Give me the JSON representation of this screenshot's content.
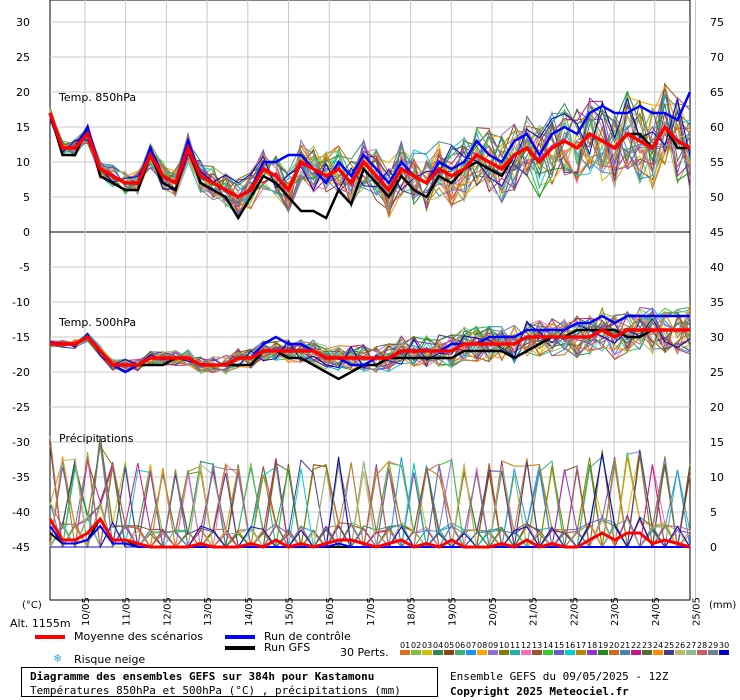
{
  "chart_data": {
    "type": "line",
    "title": "Diagramme des ensembles GEFS sur 384h pour Kastamonu",
    "subtitle": "Températures 850hPa et 500hPa (°C) , précipitations (mm)",
    "run_info": "Ensemble GEFS du 09/05/2025 - 12Z",
    "copyright": "Copyright 2025 Meteociel.fr",
    "altitude": "Alt. 1155m",
    "left_unit": "(°C)",
    "right_unit": "(mm)",
    "left_ticks": [
      "30",
      "25",
      "20",
      "15",
      "10",
      "5",
      "0",
      "-5",
      "-10",
      "-15",
      "-20",
      "-25",
      "-30",
      "-35",
      "-40",
      "-45"
    ],
    "right_ticks": [
      "75",
      "70",
      "65",
      "60",
      "55",
      "50",
      "45",
      "40",
      "35",
      "30",
      "25",
      "20",
      "15",
      "10",
      "5",
      "0"
    ],
    "dates": [
      "10/05",
      "11/05",
      "12/05",
      "13/05",
      "14/05",
      "15/05",
      "16/05",
      "17/05",
      "18/05",
      "19/05",
      "20/05",
      "21/05",
      "22/05",
      "23/05",
      "24/05",
      "25/05"
    ],
    "panels": {
      "t850": "Temp. 850hPa",
      "t500": "Temp. 500hPa",
      "precip": "Précipitations"
    },
    "legend": {
      "mean": "Moyenne des scénarios",
      "control": "Run de contrôle",
      "gfs": "Run GFS",
      "snow": "Risque neige",
      "perts": "30 Perts."
    },
    "perturbation_labels": [
      "01",
      "02",
      "03",
      "04",
      "05",
      "06",
      "07",
      "08",
      "09",
      "10",
      "11",
      "12",
      "13",
      "14",
      "15",
      "16",
      "17",
      "18",
      "19",
      "20",
      "21",
      "22",
      "23",
      "24",
      "25",
      "26",
      "27",
      "28",
      "29",
      "30"
    ],
    "colors": {
      "mean": "#ff0000",
      "control": "#0000ff",
      "gfs": "#000000",
      "grid": "#c8c8c8",
      "snow": "#3aa0e0",
      "members": [
        "#e07020",
        "#7fbf3f",
        "#d0c000",
        "#2e8b57",
        "#8b4513",
        "#3cb371",
        "#1e90ff",
        "#ffa500",
        "#9370db",
        "#808000",
        "#20b2aa",
        "#ff69b4",
        "#a0522d",
        "#32cd32",
        "#6a5acd",
        "#00ced1",
        "#b8860b",
        "#9932cc",
        "#228b22",
        "#d2691e",
        "#4682b4",
        "#c71585",
        "#556b2f",
        "#ff8c00",
        "#483d8b",
        "#bdb76b",
        "#8fbc8f",
        "#cd5c5c",
        "#708090",
        "#0000cd"
      ]
    },
    "series": {
      "t850_mean": [
        17,
        12,
        12,
        14,
        9,
        8,
        7,
        7,
        11,
        8,
        7,
        12,
        8,
        7,
        6,
        5,
        6,
        9,
        8,
        6,
        10,
        9,
        8,
        9,
        7,
        10,
        8,
        6,
        9,
        8,
        7,
        9,
        8,
        9,
        11,
        10,
        9,
        11,
        12,
        10,
        12,
        13,
        12,
        14,
        13,
        12,
        14,
        13,
        12,
        15,
        13,
        12
      ],
      "t850_control": [
        17,
        12,
        12,
        15,
        9,
        8,
        7,
        7,
        12,
        8,
        7,
        13,
        8,
        7,
        6,
        5,
        6,
        10,
        10,
        11,
        11,
        9,
        7,
        10,
        8,
        11,
        9,
        7,
        10,
        8,
        7,
        10,
        9,
        10,
        13,
        11,
        10,
        13,
        14,
        11,
        14,
        15,
        14,
        17,
        18,
        17,
        17,
        18,
        17,
        17,
        16,
        20
      ],
      "t850_gfs": [
        17,
        11,
        11,
        15,
        8,
        7,
        6,
        6,
        11,
        7,
        6,
        12,
        7,
        6,
        5,
        2,
        5,
        8,
        7,
        5,
        3,
        3,
        2,
        6,
        4,
        9,
        7,
        5,
        8,
        6,
        5,
        8,
        7,
        9,
        10,
        9,
        8,
        11,
        12,
        10,
        12,
        13,
        12,
        14,
        13,
        12,
        14,
        14,
        12,
        15,
        12,
        12
      ],
      "t500_mean": [
        -16,
        -16,
        -16,
        -15,
        -17,
        -19,
        -19,
        -19,
        -18,
        -18,
        -18,
        -18,
        -19,
        -19,
        -19,
        -18,
        -18,
        -17,
        -17,
        -17,
        -17,
        -17,
        -18,
        -18,
        -18,
        -18,
        -18,
        -18,
        -17,
        -17,
        -17,
        -17,
        -17,
        -16,
        -16,
        -16,
        -16,
        -16,
        -15,
        -15,
        -15,
        -15,
        -15,
        -15,
        -14,
        -15,
        -14,
        -14,
        -14,
        -14,
        -14,
        -14
      ],
      "t500_control": [
        -16,
        -16,
        -16,
        -15,
        -17,
        -19,
        -20,
        -19,
        -18,
        -18,
        -18,
        -18,
        -19,
        -19,
        -19,
        -18,
        -18,
        -16,
        -15,
        -16,
        -16,
        -17,
        -18,
        -18,
        -19,
        -19,
        -18,
        -18,
        -17,
        -17,
        -17,
        -17,
        -16,
        -16,
        -16,
        -15,
        -15,
        -15,
        -14,
        -14,
        -14,
        -14,
        -13,
        -13,
        -12,
        -13,
        -12,
        -12,
        -12,
        -12,
        -12,
        -12
      ],
      "t500_gfs": [
        -16,
        -16,
        -16,
        -15,
        -17,
        -19,
        -20,
        -19,
        -19,
        -19,
        -18,
        -18,
        -19,
        -19,
        -19,
        -19,
        -19,
        -17,
        -17,
        -18,
        -18,
        -19,
        -20,
        -21,
        -20,
        -19,
        -19,
        -18,
        -18,
        -18,
        -18,
        -18,
        -18,
        -17,
        -17,
        -17,
        -17,
        -18,
        -17,
        -16,
        -15,
        -15,
        -14,
        -14,
        -14,
        -14,
        -15,
        -15,
        -14,
        -14,
        -14,
        -14
      ],
      "precip_mean": [
        4,
        1,
        1,
        2,
        4,
        1,
        1,
        0.5,
        0,
        0,
        0,
        0,
        0.5,
        0,
        0,
        0,
        0.5,
        0,
        1,
        0,
        0.5,
        0,
        0.5,
        1,
        1,
        0.5,
        0,
        0.5,
        1,
        0,
        0.5,
        0,
        1,
        0,
        0,
        0,
        0.5,
        0,
        1,
        0,
        0.5,
        0,
        0,
        1,
        2,
        1,
        2,
        2,
        0.5,
        1,
        0.5,
        0
      ],
      "precip_control": [
        3,
        0.5,
        0.5,
        1,
        3,
        0.5,
        0.5,
        0,
        0,
        0,
        0,
        0,
        0,
        0,
        0,
        0,
        0,
        0,
        0,
        0,
        0,
        0,
        0,
        0.5,
        0,
        0,
        0,
        0,
        0,
        0,
        0,
        0,
        0,
        0,
        0,
        0,
        0,
        0,
        0,
        0,
        0,
        0,
        0,
        0,
        0,
        0,
        0,
        0,
        0,
        0,
        0,
        0
      ],
      "precip_gfs": [
        2,
        0.5,
        0.5,
        1,
        4,
        1,
        1,
        0,
        0,
        0,
        0,
        0,
        0,
        0,
        0,
        0,
        0,
        0,
        0,
        0,
        0,
        0,
        0,
        0,
        0,
        0,
        0,
        0,
        0,
        0,
        0,
        0,
        0,
        0,
        0,
        0,
        0,
        0,
        0,
        0,
        0,
        0,
        0,
        0,
        0,
        0,
        0,
        0,
        0,
        0,
        0,
        0
      ]
    }
  }
}
